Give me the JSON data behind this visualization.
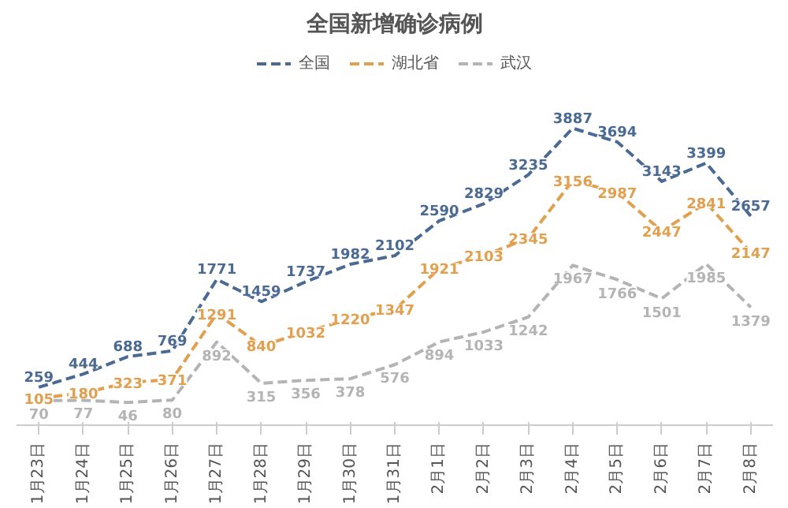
{
  "chart_data": {
    "type": "line",
    "title": "全国新增确诊病例",
    "categories": [
      "1月23日",
      "1月24日",
      "1月25日",
      "1月26日",
      "1月27日",
      "1月28日",
      "1月29日",
      "1月30日",
      "1月31日",
      "2月1日",
      "2月2日",
      "2月3日",
      "2月4日",
      "2月5日",
      "2月6日",
      "2月7日",
      "2月8日"
    ],
    "series": [
      {
        "name": "全国",
        "color": "#4a6a94",
        "values": [
          259,
          444,
          688,
          769,
          1771,
          1459,
          1737,
          1982,
          2102,
          2590,
          2829,
          3235,
          3887,
          3694,
          3143,
          3399,
          2657
        ]
      },
      {
        "name": "湖北省",
        "color": "#e0a050",
        "values": [
          105,
          180,
          323,
          371,
          1291,
          840,
          1032,
          1220,
          1347,
          1921,
          2103,
          2345,
          3156,
          2987,
          2447,
          2841,
          2147
        ]
      },
      {
        "name": "武汉",
        "color": "#b4b4b4",
        "values": [
          70,
          77,
          46,
          80,
          892,
          315,
          356,
          378,
          576,
          894,
          1033,
          1242,
          1967,
          1766,
          1501,
          1985,
          1379
        ]
      }
    ],
    "data_labels": true,
    "legend": "top",
    "grid": false,
    "line_style": "dashed"
  }
}
